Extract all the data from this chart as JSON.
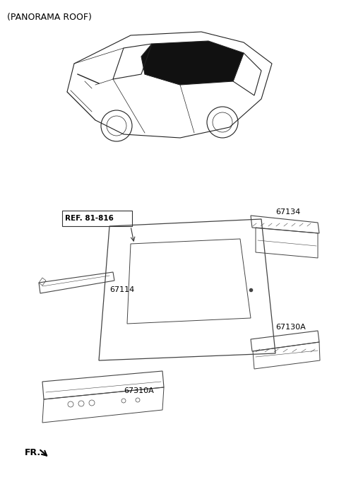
{
  "title": "(PANORAMA ROOF)",
  "background_color": "#ffffff",
  "text_color": "#000000",
  "line_color": "#333333",
  "fig_width": 4.8,
  "fig_height": 6.82,
  "dpi": 100,
  "labels": {
    "ref": "REF. 81-816",
    "67114": "67114",
    "67134": "67134",
    "67130A": "67130A",
    "67310A": "67310A",
    "FR": "FR."
  }
}
